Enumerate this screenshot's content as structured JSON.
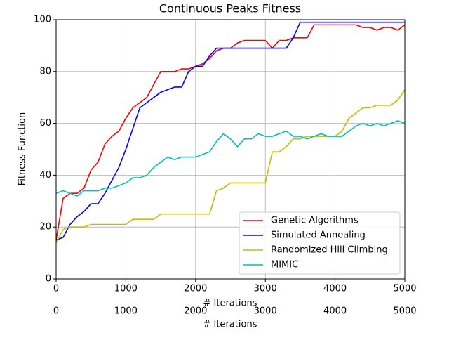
{
  "chart_data": {
    "type": "line",
    "title": "Continuous Peaks Fitness",
    "x_label": "# Iterations",
    "y_label": "Fitness Function",
    "x": [
      0,
      100,
      200,
      300,
      400,
      500,
      600,
      700,
      800,
      900,
      1000,
      1100,
      1200,
      1300,
      1400,
      1500,
      1600,
      1700,
      1800,
      1900,
      2000,
      2100,
      2200,
      2300,
      2400,
      2500,
      2600,
      2700,
      2800,
      2900,
      3000,
      3100,
      3200,
      3300,
      3400,
      3500,
      3600,
      3700,
      3800,
      3900,
      4000,
      4100,
      4200,
      4300,
      4400,
      4500,
      4600,
      4700,
      4800,
      4900,
      5000
    ],
    "series": [
      {
        "name": "Genetic Algorithms",
        "color": "#ff0000",
        "values": [
          15,
          31,
          33,
          33,
          35,
          42,
          45,
          52,
          55,
          57,
          62,
          66,
          68,
          70,
          75,
          80,
          80,
          80,
          81,
          81,
          82,
          83,
          85,
          88,
          89,
          89,
          91,
          92,
          92,
          92,
          92,
          89,
          92,
          92,
          93,
          93,
          93,
          98,
          98,
          98,
          98,
          98,
          98,
          98,
          97,
          97,
          96,
          97,
          97,
          96,
          98
        ]
      },
      {
        "name": "Simulated Annealing",
        "color": "#0000ff",
        "values": [
          15,
          16,
          21,
          24,
          26,
          29,
          29,
          33,
          38,
          43,
          50,
          58,
          66,
          68,
          70,
          72,
          73,
          74,
          74,
          80,
          82,
          82,
          86,
          89,
          89,
          89,
          89,
          89,
          89,
          89,
          89,
          89,
          89,
          89,
          93,
          99,
          99,
          99,
          99,
          99,
          99,
          99,
          99,
          99,
          99,
          99,
          99,
          99,
          99,
          99,
          99
        ]
      },
      {
        "name": "Randomized Hill Climbing",
        "color": "#bfbf00",
        "values": [
          14,
          19,
          20,
          20,
          20,
          21,
          21,
          21,
          21,
          21,
          21,
          23,
          23,
          23,
          23,
          25,
          25,
          25,
          25,
          25,
          25,
          25,
          25,
          34,
          35,
          37,
          37,
          37,
          37,
          37,
          37,
          49,
          49,
          51,
          54,
          54,
          55,
          55,
          55,
          55,
          55,
          57,
          62,
          64,
          66,
          66,
          67,
          67,
          67,
          69,
          73
        ]
      },
      {
        "name": "MIMIC",
        "color": "#00bfbf",
        "values": [
          33,
          34,
          33,
          32,
          34,
          34,
          34,
          35,
          35,
          36,
          37,
          39,
          39,
          40,
          43,
          45,
          47,
          46,
          47,
          47,
          47,
          48,
          49,
          53,
          56,
          54,
          51,
          54,
          54,
          56,
          55,
          55,
          56,
          57,
          55,
          55,
          54,
          55,
          56,
          55,
          55,
          55,
          57,
          59,
          60,
          59,
          60,
          59,
          60,
          61,
          60
        ]
      }
    ],
    "xlim": [
      0,
      5000
    ],
    "xticks": [
      0,
      1000,
      2000,
      3000,
      4000,
      5000
    ],
    "ylim": [
      0,
      100
    ],
    "yticks": [
      0,
      20,
      40,
      60,
      80,
      100
    ],
    "grid": true,
    "legend": "lower right"
  }
}
